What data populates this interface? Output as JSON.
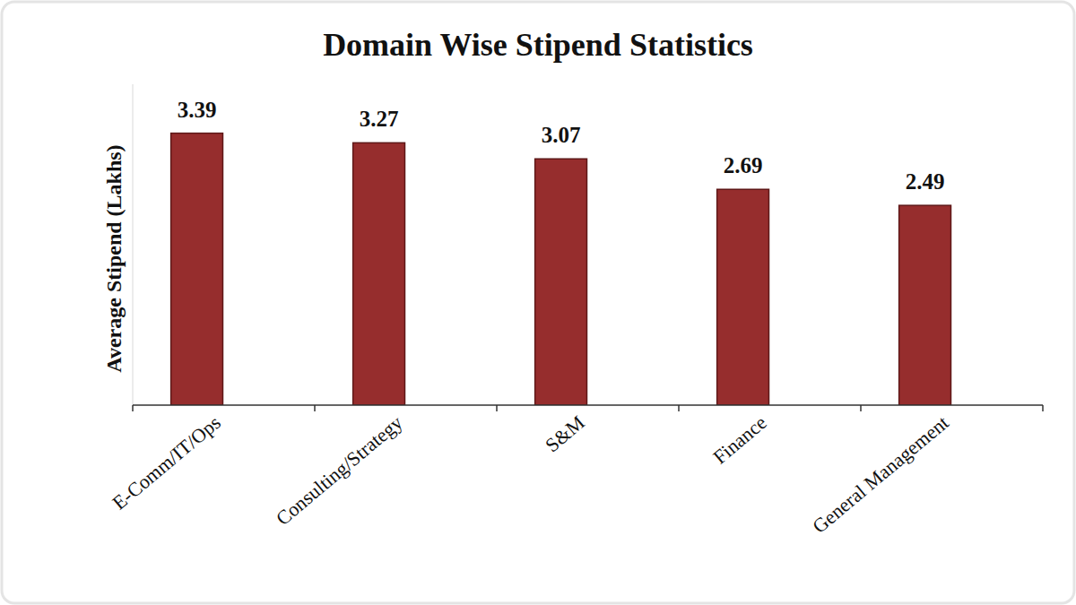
{
  "chart_data": {
    "type": "bar",
    "title": "Domain Wise Stipend Statistics",
    "y_label": "Average Stipend (Lakhs)",
    "categories": [
      "E-Comm/IT/Ops",
      "Consulting/Strategy",
      "S&M",
      "Finance",
      "General Management"
    ],
    "values": [
      3.39,
      3.27,
      3.07,
      2.69,
      2.49
    ],
    "color": "#962d2d",
    "ylim": [
      0,
      4
    ],
    "data_labels": true,
    "tick_labels": false,
    "grid": false
  }
}
